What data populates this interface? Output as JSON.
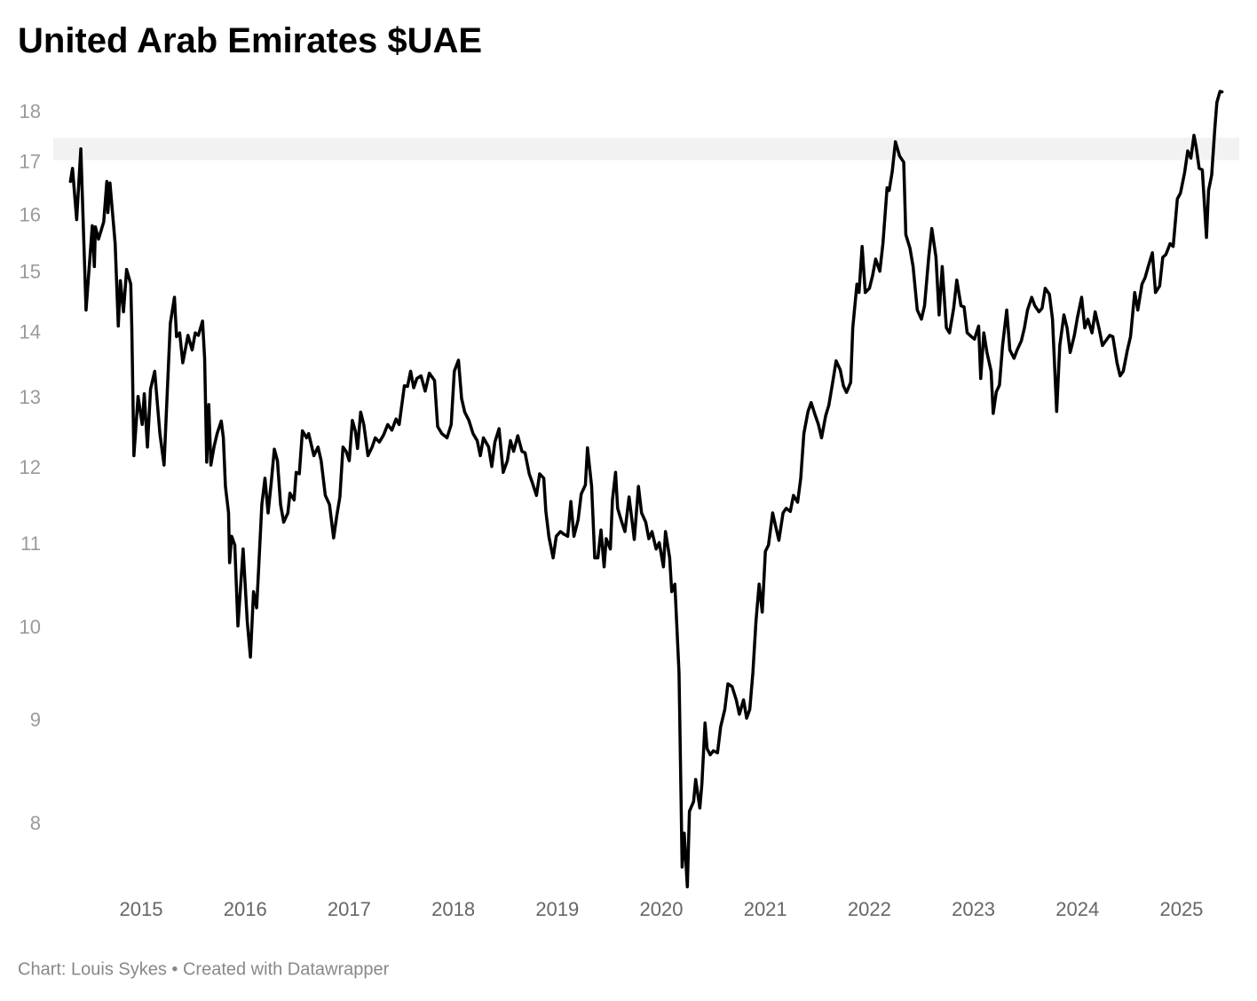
{
  "chart_data": {
    "type": "line",
    "title": "United Arab Emirates $UAE",
    "footer": "Chart: Louis Sykes • Created with Datawrapper",
    "color": "#000000",
    "log_scale": true,
    "grid": false,
    "highlight_band": [
      17.06,
      17.5
    ],
    "highlight_color": "#f2f2f2",
    "xlim": [
      2014.155,
      2025.555
    ],
    "xticks": [
      2015,
      2016,
      2017,
      2018,
      2019,
      2020,
      2021,
      2022,
      2023,
      2024,
      2025
    ],
    "ylim": [
      7.4,
      18.6
    ],
    "yticks": [
      8,
      9,
      10,
      11,
      12,
      13,
      14,
      15,
      16,
      17,
      18
    ],
    "x": [
      2014.32,
      2014.34,
      2014.38,
      2014.42,
      2014.47,
      2014.53,
      2014.55,
      2014.56,
      2014.59,
      2014.64,
      2014.67,
      2014.68,
      2014.7,
      2014.75,
      2014.78,
      2014.8,
      2014.83,
      2014.86,
      2014.9,
      2014.91,
      2014.93,
      2014.97,
      2015.01,
      2015.03,
      2015.06,
      2015.09,
      2015.13,
      2015.18,
      2015.22,
      2015.28,
      2015.32,
      2015.34,
      2015.37,
      2015.4,
      2015.45,
      2015.49,
      2015.52,
      2015.55,
      2015.59,
      2015.61,
      2015.63,
      2015.65,
      2015.67,
      2015.7,
      2015.73,
      2015.77,
      2015.79,
      2015.81,
      2015.84,
      2015.85,
      2015.87,
      2015.9,
      2015.93,
      2015.98,
      2016.02,
      2016.05,
      2016.08,
      2016.11,
      2016.13,
      2016.16,
      2016.19,
      2016.22,
      2016.25,
      2016.28,
      2016.31,
      2016.34,
      2016.37,
      2016.41,
      2016.43,
      2016.47,
      2016.49,
      2016.52,
      2016.55,
      2016.59,
      2016.61,
      2016.66,
      2016.7,
      2016.73,
      2016.77,
      2016.81,
      2016.85,
      2016.88,
      2016.91,
      2016.94,
      2016.97,
      2017.0,
      2017.03,
      2017.06,
      2017.08,
      2017.11,
      2017.14,
      2017.18,
      2017.22,
      2017.25,
      2017.29,
      2017.33,
      2017.37,
      2017.41,
      2017.45,
      2017.48,
      2017.53,
      2017.56,
      2017.59,
      2017.62,
      2017.65,
      2017.69,
      2017.73,
      2017.77,
      2017.82,
      2017.85,
      2017.89,
      2017.94,
      2017.98,
      2018.01,
      2018.05,
      2018.08,
      2018.11,
      2018.15,
      2018.19,
      2018.23,
      2018.26,
      2018.29,
      2018.34,
      2018.37,
      2018.4,
      2018.44,
      2018.48,
      2018.52,
      2018.55,
      2018.58,
      2018.62,
      2018.66,
      2018.69,
      2018.73,
      2018.76,
      2018.8,
      2018.83,
      2018.87,
      2018.89,
      2018.92,
      2018.96,
      2018.99,
      2019.03,
      2019.06,
      2019.1,
      2019.13,
      2019.16,
      2019.2,
      2019.23,
      2019.27,
      2019.29,
      2019.33,
      2019.36,
      2019.39,
      2019.42,
      2019.45,
      2019.47,
      2019.51,
      2019.53,
      2019.56,
      2019.58,
      2019.62,
      2019.65,
      2019.69,
      2019.72,
      2019.74,
      2019.78,
      2019.81,
      2019.85,
      2019.88,
      2019.91,
      2019.95,
      2019.98,
      2020.02,
      2020.04,
      2020.08,
      2020.1,
      2020.13,
      2020.17,
      2020.2,
      2020.22,
      2020.25,
      2020.27,
      2020.31,
      2020.33,
      2020.37,
      2020.39,
      2020.42,
      2020.44,
      2020.47,
      2020.5,
      2020.54,
      2020.57,
      2020.61,
      2020.64,
      2020.68,
      2020.72,
      2020.75,
      2020.79,
      2020.82,
      2020.85,
      2020.88,
      2020.91,
      2020.94,
      2020.97,
      2021.0,
      2021.03,
      2021.07,
      2021.1,
      2021.13,
      2021.17,
      2021.2,
      2021.24,
      2021.27,
      2021.31,
      2021.34,
      2021.37,
      2021.41,
      2021.44,
      2021.48,
      2021.51,
      2021.54,
      2021.58,
      2021.61,
      2021.65,
      2021.68,
      2021.72,
      2021.75,
      2021.78,
      2021.82,
      2021.84,
      2021.88,
      2021.9,
      2021.93,
      2021.96,
      2022.0,
      2022.03,
      2022.06,
      2022.1,
      2022.13,
      2022.17,
      2022.19,
      2022.22,
      2022.25,
      2022.29,
      2022.33,
      2022.35,
      2022.39,
      2022.42,
      2022.46,
      2022.5,
      2022.53,
      2022.57,
      2022.6,
      2022.64,
      2022.67,
      2022.7,
      2022.74,
      2022.77,
      2022.81,
      2022.84,
      2022.88,
      2022.91,
      2022.94,
      2022.98,
      2023.01,
      2023.05,
      2023.07,
      2023.1,
      2023.13,
      2023.17,
      2023.19,
      2023.22,
      2023.25,
      2023.28,
      2023.32,
      2023.35,
      2023.39,
      2023.42,
      2023.46,
      2023.49,
      2023.52,
      2023.56,
      2023.59,
      2023.63,
      2023.66,
      2023.69,
      2023.73,
      2023.76,
      2023.8,
      2023.83,
      2023.87,
      2023.9,
      2023.93,
      2023.97,
      2024.0,
      2024.04,
      2024.07,
      2024.1,
      2024.14,
      2024.17,
      2024.21,
      2024.24,
      2024.27,
      2024.31,
      2024.34,
      2024.38,
      2024.41,
      2024.44,
      2024.48,
      2024.51,
      2024.55,
      2024.58,
      2024.62,
      2024.65,
      2024.68,
      2024.72,
      2024.75,
      2024.79,
      2024.82,
      2024.85,
      2024.89,
      2024.92,
      2024.96,
      2024.99,
      2025.03,
      2025.06,
      2025.09,
      2025.12,
      2025.14,
      2025.17,
      2025.2,
      2025.24,
      2025.26,
      2025.29,
      2025.32,
      2025.34,
      2025.37,
      2025.39
    ],
    "values": [
      16.65,
      16.9,
      15.94,
      17.28,
      14.38,
      15.83,
      15.11,
      15.81,
      15.59,
      15.9,
      16.65,
      16.07,
      16.62,
      15.51,
      14.12,
      14.87,
      14.35,
      15.06,
      14.81,
      14.09,
      12.18,
      13.03,
      12.62,
      13.07,
      12.3,
      13.14,
      13.41,
      12.49,
      12.05,
      14.16,
      14.59,
      13.95,
      14.01,
      13.54,
      13.97,
      13.74,
      14.01,
      13.97,
      14.2,
      13.61,
      12.09,
      12.91,
      12.05,
      12.3,
      12.49,
      12.67,
      12.43,
      11.76,
      11.41,
      10.78,
      11.11,
      11.0,
      10.03,
      10.95,
      10.08,
      9.68,
      10.43,
      10.24,
      10.73,
      11.52,
      11.87,
      11.41,
      11.81,
      12.27,
      12.11,
      11.52,
      11.29,
      11.41,
      11.67,
      11.58,
      11.95,
      11.93,
      12.53,
      12.43,
      12.49,
      12.18,
      12.3,
      12.11,
      11.64,
      11.52,
      11.09,
      11.37,
      11.62,
      12.3,
      12.24,
      12.11,
      12.68,
      12.52,
      12.28,
      12.8,
      12.62,
      12.18,
      12.3,
      12.43,
      12.37,
      12.47,
      12.62,
      12.54,
      12.7,
      12.62,
      13.19,
      13.18,
      13.41,
      13.16,
      13.3,
      13.34,
      13.11,
      13.38,
      13.27,
      12.59,
      12.49,
      12.43,
      12.62,
      13.41,
      13.58,
      13.0,
      12.8,
      12.68,
      12.49,
      12.39,
      12.18,
      12.43,
      12.3,
      12.03,
      12.37,
      12.56,
      11.95,
      12.11,
      12.39,
      12.24,
      12.46,
      12.24,
      12.22,
      11.93,
      11.81,
      11.64,
      11.93,
      11.87,
      11.43,
      11.1,
      10.84,
      11.11,
      11.17,
      11.14,
      11.11,
      11.56,
      11.11,
      11.32,
      11.66,
      11.78,
      12.29,
      11.76,
      10.84,
      10.84,
      11.19,
      10.73,
      11.08,
      10.95,
      11.58,
      11.95,
      11.47,
      11.29,
      11.17,
      11.62,
      11.29,
      11.07,
      11.76,
      11.41,
      11.29,
      11.08,
      11.17,
      10.95,
      11.03,
      10.73,
      11.17,
      10.84,
      10.43,
      10.52,
      9.51,
      7.62,
      7.92,
      7.45,
      8.12,
      8.21,
      8.42,
      8.15,
      8.38,
      8.98,
      8.72,
      8.66,
      8.7,
      8.68,
      8.94,
      9.12,
      9.39,
      9.36,
      9.22,
      9.07,
      9.22,
      9.03,
      9.12,
      9.51,
      10.09,
      10.52,
      10.19,
      10.92,
      11.0,
      11.41,
      11.23,
      11.06,
      11.41,
      11.47,
      11.43,
      11.64,
      11.55,
      11.87,
      12.49,
      12.81,
      12.94,
      12.75,
      12.62,
      12.43,
      12.75,
      12.9,
      13.27,
      13.57,
      13.43,
      13.19,
      13.09,
      13.24,
      14.09,
      14.81,
      14.67,
      15.46,
      14.67,
      14.74,
      14.95,
      15.24,
      15.03,
      15.51,
      16.53,
      16.48,
      16.85,
      17.42,
      17.14,
      17.02,
      15.67,
      15.43,
      15.11,
      14.38,
      14.23,
      14.45,
      15.27,
      15.78,
      15.27,
      14.3,
      15.11,
      14.09,
      14.01,
      14.41,
      14.88,
      14.45,
      14.43,
      14.01,
      13.95,
      13.91,
      14.12,
      13.3,
      14.01,
      13.7,
      13.41,
      12.78,
      13.1,
      13.2,
      13.81,
      14.38,
      13.74,
      13.61,
      13.74,
      13.88,
      14.09,
      14.38,
      14.59,
      14.45,
      14.35,
      14.41,
      14.74,
      14.64,
      14.23,
      12.81,
      13.81,
      14.3,
      14.09,
      13.7,
      13.97,
      14.26,
      14.59,
      14.09,
      14.23,
      14.01,
      14.35,
      14.06,
      13.81,
      13.88,
      13.97,
      13.95,
      13.54,
      13.34,
      13.41,
      13.74,
      13.95,
      14.67,
      14.38,
      14.81,
      14.92,
      15.11,
      15.35,
      14.67,
      14.78,
      15.27,
      15.32,
      15.51,
      15.46,
      16.32,
      16.43,
      16.82,
      17.24,
      17.1,
      17.55,
      17.33,
      16.9,
      16.87,
      15.62,
      16.48,
      16.77,
      17.68,
      18.22,
      18.45,
      18.44
    ]
  }
}
